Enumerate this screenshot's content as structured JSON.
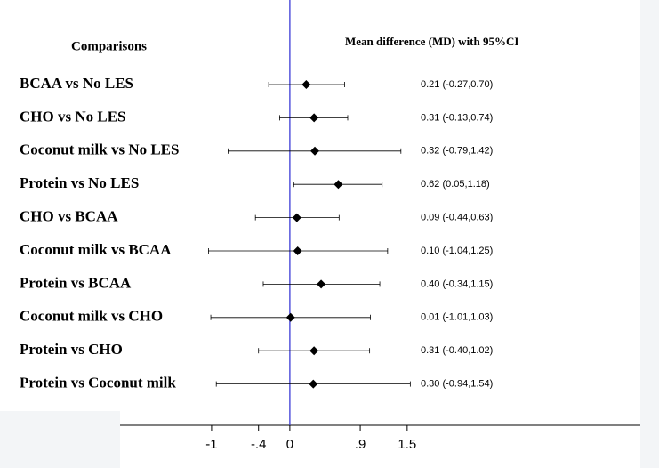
{
  "chart_data": {
    "type": "forest",
    "headers": [
      "Comparisons",
      "Mean difference (MD) with 95%CI"
    ],
    "categories": [
      "BCAA vs No LES",
      "CHO vs No LES",
      "Coconut milk vs No LES",
      "Protein vs No LES",
      "CHO vs BCAA",
      "Coconut milk vs BCAA",
      "Protein vs BCAA",
      "Coconut milk vs CHO",
      "Protein vs CHO",
      "Protein vs Coconut milk"
    ],
    "values": [
      0.21,
      0.31,
      0.32,
      0.62,
      0.09,
      0.1,
      0.4,
      0.01,
      0.31,
      0.3
    ],
    "lower": [
      -0.27,
      -0.13,
      -0.79,
      0.05,
      -0.44,
      -1.04,
      -0.34,
      -1.01,
      -0.4,
      -0.94
    ],
    "upper": [
      0.7,
      0.74,
      1.42,
      1.18,
      0.63,
      1.25,
      1.15,
      1.03,
      1.02,
      1.54
    ],
    "value_labels": [
      "0.21 (-0.27,0.70)",
      "0.31 (-0.13,0.74)",
      "0.32 (-0.79,1.42)",
      "0.62 (0.05,1.18)",
      "0.09 (-0.44,0.63)",
      "0.10 (-1.04,1.25)",
      "0.40 (-0.34,1.15)",
      "0.01 (-1.01,1.03)",
      "0.31 (-0.40,1.02)",
      "0.30 (-0.94,1.54)"
    ],
    "reference_line": 0,
    "xlim": [
      -2.17,
      4.48
    ],
    "xticks": [
      -1,
      {
        "value": -0.4,
        "label": "-.4"
      },
      0,
      {
        "value": 0.9,
        "label": ".9"
      },
      1.5
    ],
    "color": "#000000",
    "reference_color": "#3b3bd6"
  }
}
